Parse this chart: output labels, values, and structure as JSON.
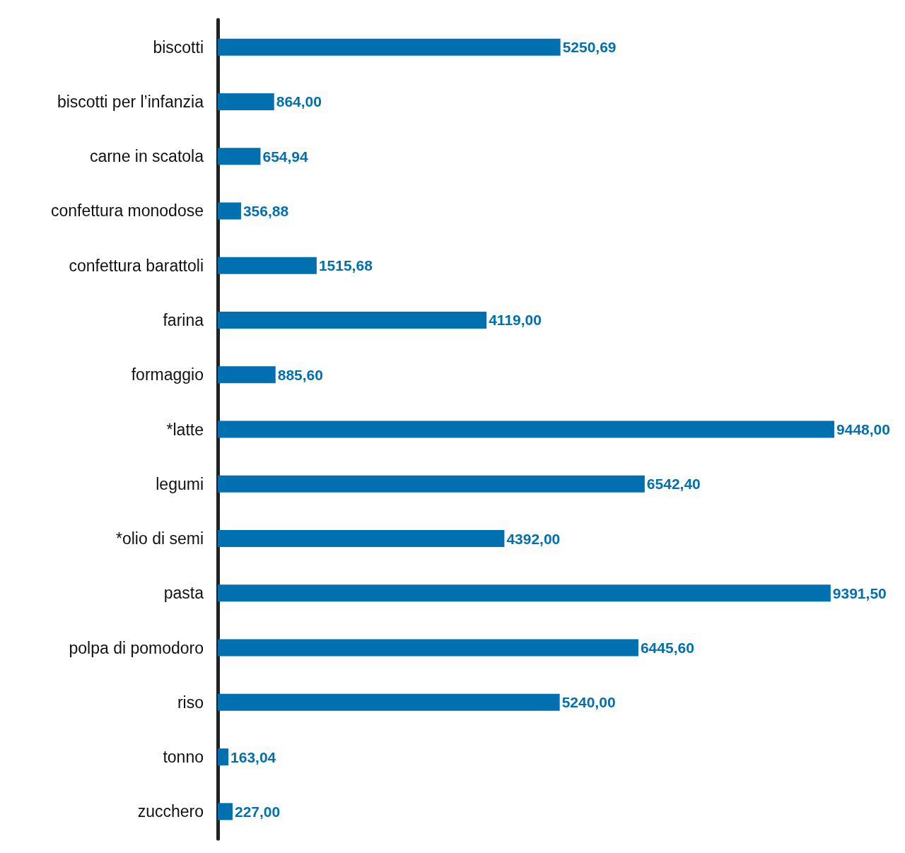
{
  "chart_data": {
    "type": "bar",
    "orientation": "horizontal",
    "color": "#0070b0",
    "categories": [
      "biscotti",
      "biscotti per l’infanzia",
      "carne in scatola",
      "confettura monodose",
      "confettura barattoli",
      "farina",
      "formaggio",
      "*latte",
      "legumi",
      "*olio di semi",
      "pasta",
      "polpa di pomodoro",
      "riso",
      "tonno",
      "zucchero"
    ],
    "values": [
      5250.69,
      864.0,
      654.94,
      356.88,
      1515.68,
      4119.0,
      885.6,
      9448.0,
      6542.4,
      4392.0,
      9391.5,
      6445.6,
      5240.0,
      163.04,
      227.0
    ],
    "value_labels": [
      "5250,69",
      "864,00",
      "654,94",
      "356,88",
      "1515,68",
      "4119,00",
      "885,60",
      "9448,00",
      "6542,40",
      "4392,00",
      "9391,50",
      "6445,60",
      "5240,00",
      "163,04",
      "227,00"
    ]
  }
}
